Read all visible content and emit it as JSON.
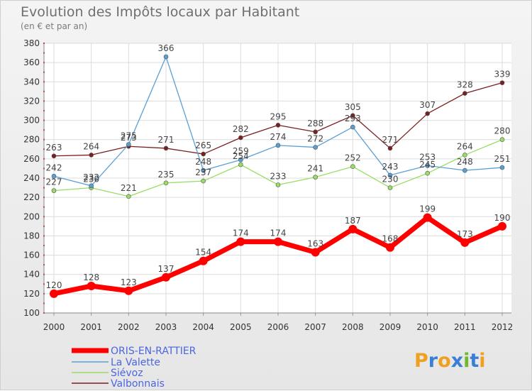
{
  "chart_data": {
    "type": "line",
    "title": "Evolution des Impôts locaux par Habitant",
    "subtitle": "(en € et par an)",
    "x": [
      "2000",
      "2001",
      "2002",
      "2003",
      "2004",
      "2005",
      "2006",
      "2007",
      "2008",
      "2009",
      "2010",
      "2011",
      "2012"
    ],
    "ylim": [
      100,
      380
    ],
    "yticks": [
      100,
      120,
      140,
      160,
      180,
      200,
      220,
      240,
      260,
      280,
      300,
      320,
      340,
      360,
      380
    ],
    "grid": true,
    "legend_position": "bottom-left",
    "series": [
      {
        "name": "ORIS-EN-RATTIER",
        "color": "#ff0000",
        "values": [
          120,
          128,
          123,
          137,
          154,
          174,
          174,
          163,
          187,
          168,
          199,
          173,
          190
        ]
      },
      {
        "name": "La Valette",
        "color": "#5a9fd4",
        "values": [
          242,
          232,
          275,
          366,
          248,
          259,
          274,
          272,
          293,
          243,
          253,
          248,
          251
        ]
      },
      {
        "name": "Siévoz",
        "color": "#99dd66",
        "values": [
          227,
          230,
          221,
          235,
          237,
          254,
          233,
          241,
          252,
          230,
          245,
          264,
          280
        ]
      },
      {
        "name": "Valbonnais",
        "color": "#7a1f1f",
        "values": [
          263,
          264,
          273,
          271,
          265,
          282,
          295,
          288,
          305,
          271,
          307,
          328,
          339
        ]
      }
    ]
  },
  "logo": {
    "text": "Proxiti"
  }
}
